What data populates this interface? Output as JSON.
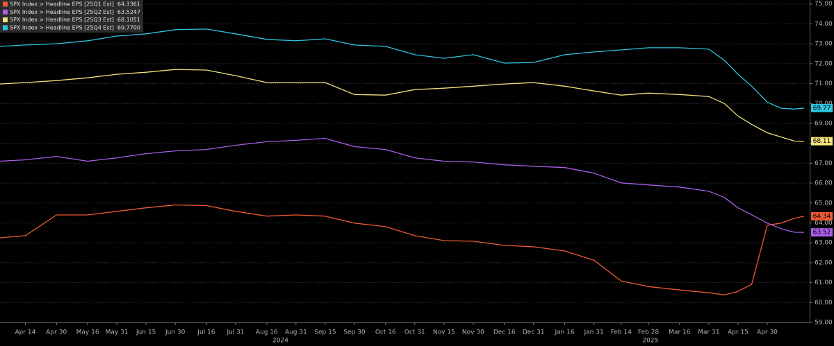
{
  "chart_data": {
    "type": "line",
    "x": [
      "2024-04-01",
      "2024-04-14",
      "2024-04-30",
      "2024-05-16",
      "2024-05-31",
      "2024-06-15",
      "2024-06-30",
      "2024-07-16",
      "2024-07-31",
      "2024-08-16",
      "2024-08-31",
      "2024-09-15",
      "2024-09-30",
      "2024-10-16",
      "2024-10-31",
      "2024-11-15",
      "2024-11-30",
      "2024-12-16",
      "2024-12-31",
      "2025-01-16",
      "2025-01-31",
      "2025-02-14",
      "2025-02-28",
      "2025-03-16",
      "2025-03-31",
      "2025-04-08",
      "2025-04-15",
      "2025-04-22",
      "2025-04-30",
      "2025-05-07",
      "2025-05-14",
      "2025-05-19"
    ],
    "xlim": [
      "2024-04-01",
      "2025-05-20"
    ],
    "xticks": [
      {
        "value": "2024-04-14",
        "label": "Apr 14"
      },
      {
        "value": "2024-04-30",
        "label": "Apr 30"
      },
      {
        "value": "2024-05-16",
        "label": "May 16"
      },
      {
        "value": "2024-05-31",
        "label": "May 31"
      },
      {
        "value": "2024-06-15",
        "label": "Jun 15"
      },
      {
        "value": "2024-06-30",
        "label": "Jun 30"
      },
      {
        "value": "2024-07-16",
        "label": "Jul 16"
      },
      {
        "value": "2024-07-31",
        "label": "Jul 31"
      },
      {
        "value": "2024-08-16",
        "label": "Aug 16"
      },
      {
        "value": "2024-08-31",
        "label": "Aug 31"
      },
      {
        "value": "2024-09-15",
        "label": "Sep 15"
      },
      {
        "value": "2024-09-30",
        "label": "Sep 30"
      },
      {
        "value": "2024-10-16",
        "label": "Oct 16"
      },
      {
        "value": "2024-10-31",
        "label": "Oct 31"
      },
      {
        "value": "2024-11-15",
        "label": "Nov 15"
      },
      {
        "value": "2024-11-30",
        "label": "Nov 30"
      },
      {
        "value": "2024-12-16",
        "label": "Dec 16"
      },
      {
        "value": "2024-12-31",
        "label": "Dec 31"
      },
      {
        "value": "2025-01-16",
        "label": "Jan 16"
      },
      {
        "value": "2025-01-31",
        "label": "Jan 31"
      },
      {
        "value": "2025-02-14",
        "label": "Feb 14"
      },
      {
        "value": "2025-02-28",
        "label": "Feb 28"
      },
      {
        "value": "2025-03-16",
        "label": "Mar 16"
      },
      {
        "value": "2025-03-31",
        "label": "Mar 31"
      },
      {
        "value": "2025-04-15",
        "label": "Apr 15"
      },
      {
        "value": "2025-04-30",
        "label": "Apr 30"
      }
    ],
    "year_labels": [
      {
        "value": "2024-08-23",
        "label": "2024"
      },
      {
        "value": "2025-03-01",
        "label": "2025"
      }
    ],
    "ylim": [
      59,
      75.2
    ],
    "yticks": [
      {
        "value": 59,
        "label": "59.00"
      },
      {
        "value": 60,
        "label": "60.00"
      },
      {
        "value": 61,
        "label": "61.00"
      },
      {
        "value": 62,
        "label": "62.00"
      },
      {
        "value": 63,
        "label": "63.00"
      },
      {
        "value": 64,
        "label": "64.00"
      },
      {
        "value": 65,
        "label": "65.00"
      },
      {
        "value": 66,
        "label": "66.00"
      },
      {
        "value": 67,
        "label": "67.00"
      },
      {
        "value": 68,
        "label": "68.00"
      },
      {
        "value": 69,
        "label": "69.00"
      },
      {
        "value": 70,
        "label": "70.00"
      },
      {
        "value": 71,
        "label": "71.00"
      },
      {
        "value": 72,
        "label": "72.00"
      },
      {
        "value": 73,
        "label": "73.00"
      },
      {
        "value": 74,
        "label": "74.00"
      },
      {
        "value": 75,
        "label": "75.00"
      }
    ],
    "grid": true,
    "series": [
      {
        "name": "SPX Index > Headline EPS [25Q1 Est]",
        "color": "#ec5a34",
        "last": {
          "value": 64.3361,
          "label": "64.3361"
        },
        "end_label": "64.34",
        "values": [
          63.25,
          63.36,
          64.4,
          64.4,
          64.58,
          64.76,
          64.9,
          64.87,
          64.58,
          64.34,
          64.4,
          64.34,
          63.99,
          63.81,
          63.36,
          63.11,
          63.08,
          62.87,
          62.8,
          62.59,
          62.13,
          61.08,
          60.8,
          60.63,
          60.49,
          60.38,
          60.56,
          60.91,
          63.88,
          63.99,
          64.23,
          64.3361
        ]
      },
      {
        "name": "SPX Index > Headline EPS [25Q2 Est]",
        "color": "#a95ee8",
        "last": {
          "value": 63.5247,
          "label": "63.5247"
        },
        "end_label": "63.52",
        "values": [
          67.1,
          67.17,
          67.34,
          67.1,
          67.27,
          67.48,
          67.62,
          67.69,
          67.9,
          68.08,
          68.15,
          68.25,
          67.83,
          67.69,
          67.27,
          67.1,
          67.06,
          66.92,
          66.85,
          66.78,
          66.5,
          66.01,
          65.91,
          65.8,
          65.59,
          65.28,
          64.76,
          64.41,
          63.99,
          63.71,
          63.53,
          63.5247
        ]
      },
      {
        "name": "SPX Index > Headline EPS [25Q3 Est]",
        "color": "#f1e07c",
        "last": {
          "value": 68.1051,
          "label": "68.1051"
        },
        "end_label": "68.11",
        "values": [
          70.98,
          71.05,
          71.15,
          71.29,
          71.47,
          71.57,
          71.71,
          71.68,
          71.4,
          71.05,
          71.05,
          71.05,
          70.45,
          70.42,
          70.7,
          70.77,
          70.87,
          70.98,
          71.05,
          70.87,
          70.63,
          70.42,
          70.52,
          70.45,
          70.35,
          70.0,
          69.37,
          68.95,
          68.53,
          68.32,
          68.11,
          68.1051
        ]
      },
      {
        "name": "SPX Index > Headline EPS [25Q4 Est]",
        "color": "#2ec5df",
        "last": {
          "value": 69.77,
          "label": "69.7700"
        },
        "end_label": "69.77",
        "values": [
          72.87,
          72.94,
          73.0,
          73.15,
          73.39,
          73.5,
          73.71,
          73.74,
          73.5,
          73.22,
          73.15,
          73.25,
          72.94,
          72.87,
          72.45,
          72.27,
          72.45,
          72.03,
          72.06,
          72.45,
          72.59,
          72.69,
          72.8,
          72.8,
          72.73,
          72.17,
          71.47,
          70.87,
          70.07,
          69.76,
          69.72,
          69.77
        ]
      }
    ]
  }
}
